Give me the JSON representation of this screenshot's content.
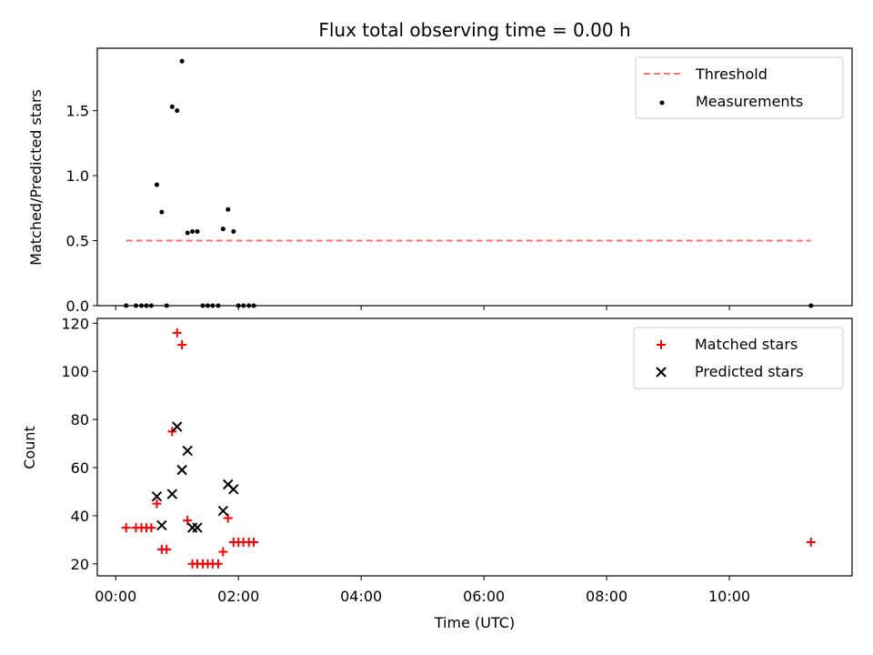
{
  "title": "Flux total observing time = 0.00 h",
  "colors": {
    "threshold": "#ff7070",
    "measurement": "#000000",
    "matched": "#ff0000",
    "predicted": "#000000"
  },
  "chart_data": [
    {
      "type": "scatter",
      "ylabel": "Matched/Predicted stars",
      "xlabel": "",
      "x_unit": "hours (UTC)",
      "xlim": [
        -0.3,
        12.0
      ],
      "ylim": [
        0,
        1.98
      ],
      "yticks": [
        0.0,
        0.5,
        1.0,
        1.5
      ],
      "ytick_labels": [
        "0.0",
        "0.5",
        "1.0",
        "1.5"
      ],
      "grid": false,
      "legend": {
        "position": "top-right",
        "entries": [
          {
            "label": "Threshold",
            "marker": "dashed-line"
          },
          {
            "label": "Measurements",
            "marker": "dot"
          }
        ]
      },
      "threshold": {
        "x": [
          0.17,
          11.33
        ],
        "y": 0.5
      },
      "series": [
        {
          "name": "Measurements",
          "x": [
            0.17,
            0.33,
            0.42,
            0.5,
            0.58,
            0.67,
            0.75,
            0.83,
            0.92,
            1.0,
            1.08,
            1.17,
            1.25,
            1.33,
            1.42,
            1.5,
            1.58,
            1.67,
            1.75,
            1.83,
            1.92,
            2.0,
            2.08,
            2.17,
            2.25,
            11.33
          ],
          "y": [
            0.0,
            0.0,
            0.0,
            0.0,
            0.0,
            0.93,
            0.72,
            0.0,
            1.53,
            1.5,
            1.88,
            0.56,
            0.57,
            0.57,
            0.0,
            0.0,
            0.0,
            0.0,
            0.59,
            0.74,
            0.57,
            0.0,
            0.0,
            0.0,
            0.0,
            0.0
          ]
        }
      ]
    },
    {
      "type": "scatter",
      "ylabel": "Count",
      "xlabel": "Time (UTC)",
      "x_unit": "hours (UTC)",
      "xlim": [
        -0.3,
        12.0
      ],
      "ylim": [
        15,
        122
      ],
      "xticks": [
        0,
        2,
        4,
        6,
        8,
        10
      ],
      "xtick_labels": [
        "00:00",
        "02:00",
        "04:00",
        "06:00",
        "08:00",
        "10:00"
      ],
      "yticks": [
        20,
        40,
        60,
        80,
        100,
        120
      ],
      "ytick_labels": [
        "20",
        "40",
        "60",
        "80",
        "100",
        "120"
      ],
      "grid": false,
      "legend": {
        "position": "top-right",
        "entries": [
          {
            "label": "Matched stars",
            "marker": "plus"
          },
          {
            "label": "Predicted stars",
            "marker": "x"
          }
        ]
      },
      "series": [
        {
          "name": "Matched stars",
          "x": [
            0.17,
            0.33,
            0.42,
            0.5,
            0.58,
            0.67,
            0.75,
            0.83,
            0.92,
            1.0,
            1.08,
            1.17,
            1.25,
            1.33,
            1.42,
            1.5,
            1.58,
            1.67,
            1.75,
            1.83,
            1.92,
            2.0,
            2.08,
            2.17,
            2.25,
            11.33
          ],
          "y": [
            35,
            35,
            35,
            35,
            35,
            45,
            26,
            26,
            75,
            116,
            111,
            38,
            20,
            20,
            20,
            20,
            20,
            20,
            25,
            39,
            29,
            29,
            29,
            29,
            29,
            29
          ]
        },
        {
          "name": "Predicted stars",
          "x": [
            0.67,
            0.75,
            0.92,
            1.0,
            1.08,
            1.17,
            1.25,
            1.33,
            1.75,
            1.83,
            1.92
          ],
          "y": [
            48,
            36,
            49,
            77,
            59,
            67,
            35,
            35,
            42,
            53,
            51
          ]
        }
      ]
    }
  ]
}
